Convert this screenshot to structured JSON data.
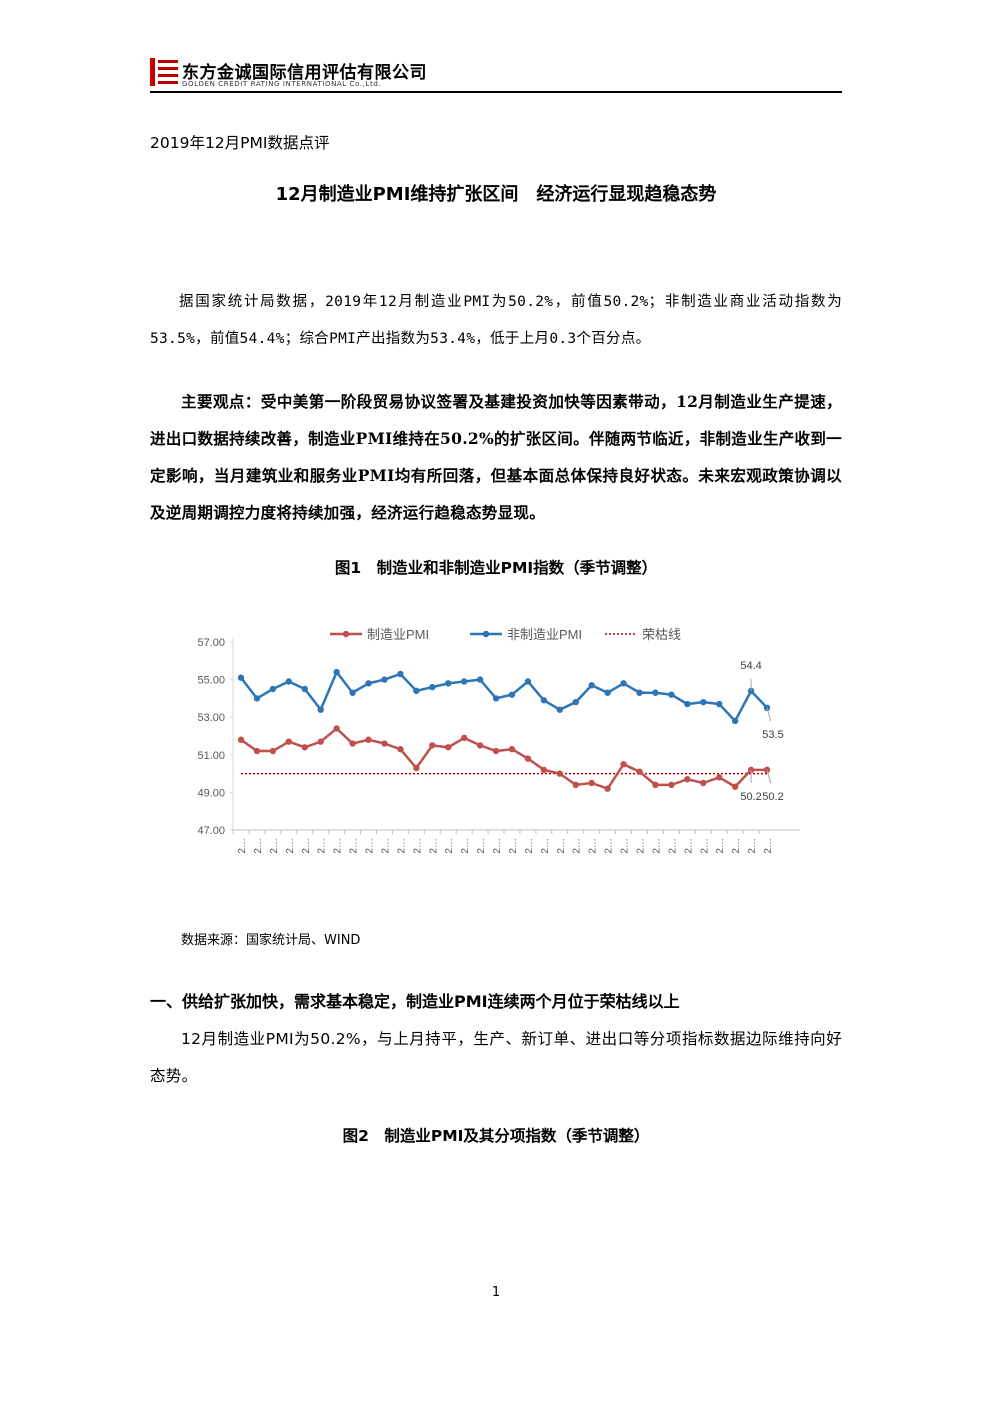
{
  "header": {
    "company": "东方金诚国际信用评估有限公司",
    "company_en": "GOLDEN CREDIT RATING INTERNATIONAL Co.,Ltd."
  },
  "report_label": "2019年12月PMI数据点评",
  "title": "12月制造业PMI维持扩张区间　经济运行显现趋稳态势",
  "paragraphs": [
    "据国家统计局数据，2019年12月制造业PMI为50.2%，前值50.2%；非制造业商业活动指数为53.5%，前值54.4%；综合PMI产出指数为53.4%，低于上月0.3个百分点。",
    "主要观点：受中美第一阶段贸易协议签署及基建投资加快等因素带动，12月制造业生产提速，进出口数据持续改善，制造业PMI维持在50.2%的扩张区间。伴随两节临近，非制造业生产收到一定影响，当月建筑业和服务业PMI均有所回落，但基本面总体保持良好状态。未来宏观政策协调以及逆周期调控力度将持续加强，经济运行趋稳态势显现。"
  ],
  "figure1_caption": "图1　制造业和非制造业PMI指数（季节调整）",
  "source": "数据来源：国家统计局、WIND",
  "section1": {
    "heading": "一、供给扩张加快，需求基本稳定，制造业PMI连续两个月位于荣枯线以上",
    "paragraph": "12月制造业PMI为50.2%，与上月持平，生产、新订单、进出口等分项指标数据边际维持向好态势。"
  },
  "figure2_caption": "图2　制造业PMI及其分项指数（季节调整）",
  "page_number": "1",
  "chart_data": {
    "type": "line",
    "categories": [
      "2…",
      "2…",
      "2…",
      "2…",
      "2…",
      "2…",
      "2…",
      "2…",
      "2…",
      "2…",
      "2…",
      "2…",
      "2…",
      "2…",
      "2…",
      "2…",
      "2…",
      "2…",
      "2…",
      "2…",
      "2…",
      "2…",
      "2…",
      "2…",
      "2…",
      "2…",
      "2…",
      "2…",
      "2…",
      "2…",
      "2…",
      "2…",
      "2…",
      "2…"
    ],
    "series": [
      {
        "name": "制造业PMI",
        "color": "#c0504d",
        "values": [
          51.8,
          51.2,
          51.2,
          51.7,
          51.4,
          51.7,
          52.4,
          51.6,
          51.8,
          51.6,
          51.3,
          50.3,
          51.5,
          51.4,
          51.9,
          51.5,
          51.2,
          51.3,
          50.8,
          50.2,
          50.0,
          49.4,
          49.5,
          49.2,
          50.5,
          50.1,
          49.4,
          49.4,
          49.7,
          49.5,
          49.8,
          49.3,
          50.2,
          50.2
        ],
        "value_labels": [
          null,
          null,
          null,
          null,
          null,
          null,
          null,
          null,
          null,
          null,
          null,
          null,
          null,
          null,
          null,
          null,
          null,
          null,
          null,
          null,
          null,
          null,
          null,
          null,
          null,
          null,
          null,
          null,
          null,
          null,
          null,
          null,
          "50.2",
          "50.2"
        ]
      },
      {
        "name": "非制造业PMI",
        "color": "#2e75b6",
        "values": [
          55.1,
          54.0,
          54.5,
          54.9,
          54.5,
          53.4,
          55.4,
          54.3,
          54.8,
          55.0,
          55.3,
          54.4,
          54.6,
          54.8,
          54.9,
          55.0,
          54.0,
          54.2,
          54.9,
          53.9,
          53.4,
          53.8,
          54.7,
          54.3,
          54.8,
          54.3,
          54.3,
          54.2,
          53.7,
          53.8,
          53.7,
          52.8,
          54.4,
          53.5
        ],
        "value_labels": [
          null,
          null,
          null,
          null,
          null,
          null,
          null,
          null,
          null,
          null,
          null,
          null,
          null,
          null,
          null,
          null,
          null,
          null,
          null,
          null,
          null,
          null,
          null,
          null,
          null,
          null,
          null,
          null,
          null,
          null,
          null,
          null,
          "54.4",
          "53.5"
        ]
      }
    ],
    "reference_line": {
      "name": "荣枯线",
      "value": 50,
      "color": "#c00000"
    },
    "ylim": [
      47,
      57
    ],
    "yticks": [
      {
        "value": 47,
        "label": "47.00"
      },
      {
        "value": 49,
        "label": "49.00"
      },
      {
        "value": 51,
        "label": "51.00"
      },
      {
        "value": 53,
        "label": "53.00"
      },
      {
        "value": 55,
        "label": "55.00"
      },
      {
        "value": 57,
        "label": "57.00"
      }
    ]
  }
}
